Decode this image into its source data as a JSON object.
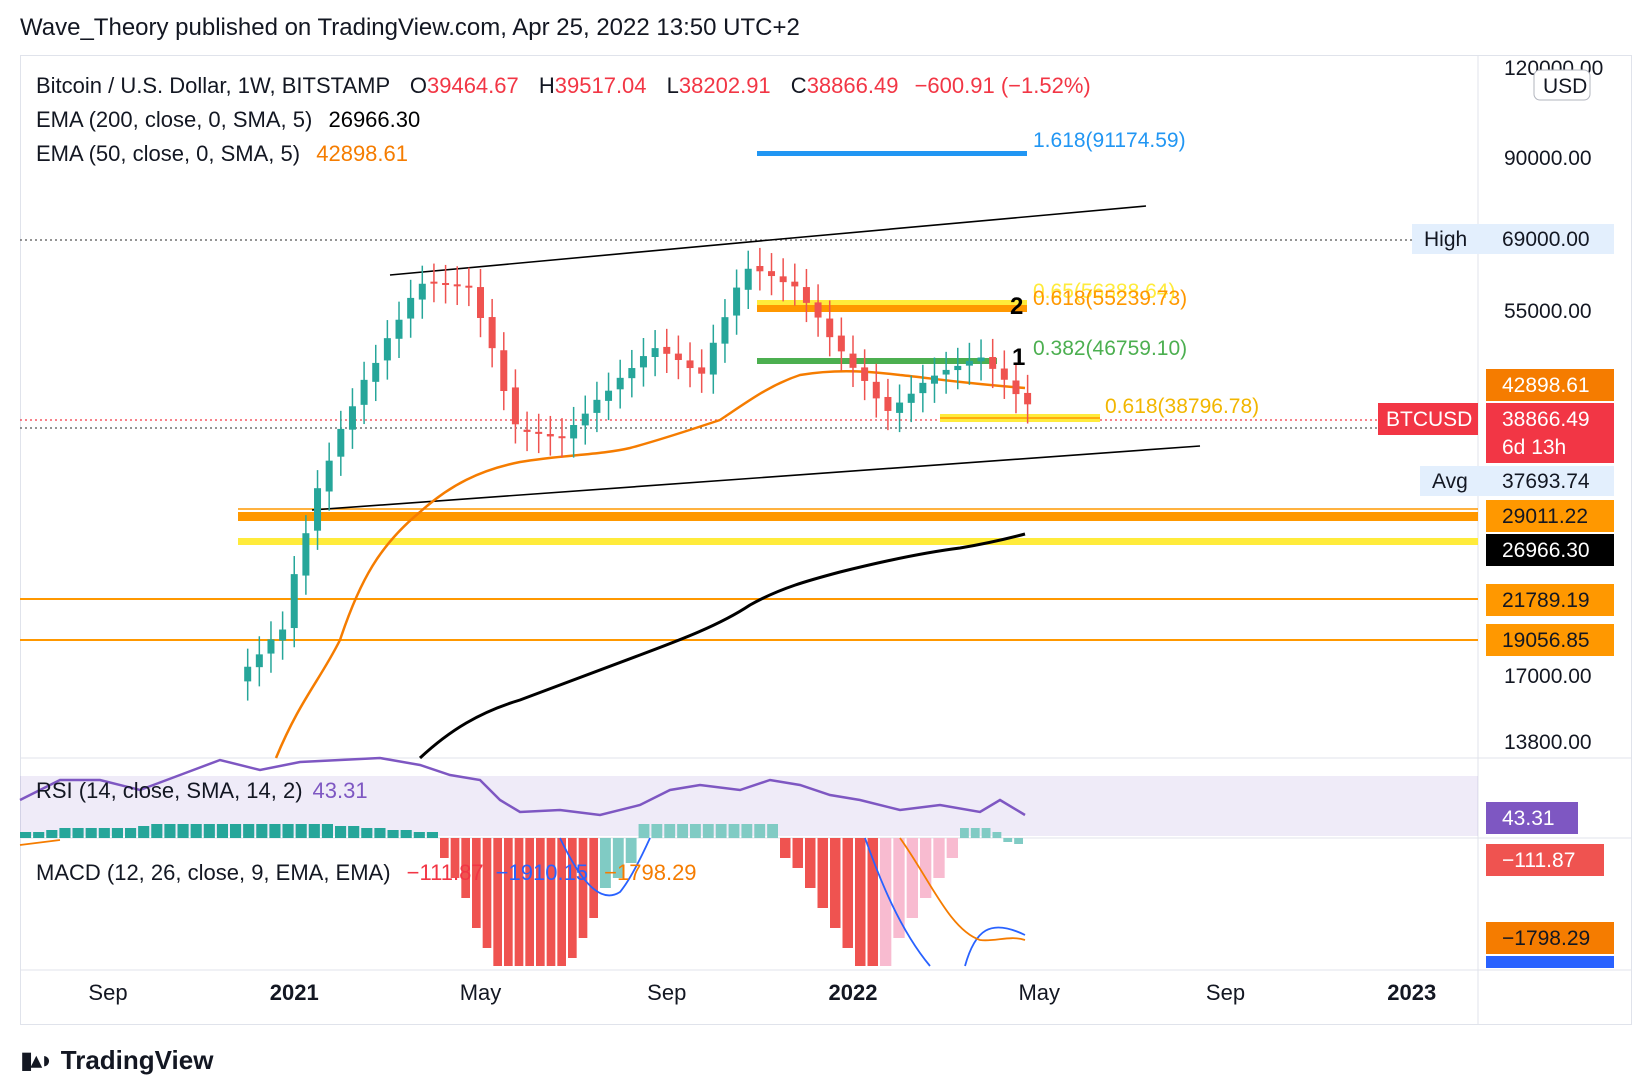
{
  "header": {
    "publisher_line": "Wave_Theory published on TradingView.com, Apr 25, 2022 13:50 UTC+2"
  },
  "legend": {
    "symbol": "Bitcoin / U.S. Dollar, 1W, BITSTAMP",
    "open_label": "O",
    "open": "39464.67",
    "high_label": "H",
    "high": "39517.04",
    "low_label": "L",
    "low": "38202.91",
    "close_label": "C",
    "close": "38866.49",
    "change": "−600.91 (−1.52%)",
    "ema200_label": "EMA (200, close, 0, SMA, 5)",
    "ema200_value": "26966.30",
    "ema50_label": "EMA (50, close, 0, SMA, 5)",
    "ema50_value": "42898.61"
  },
  "price_scale": {
    "currency": "USD",
    "ticks": [
      "120000.00",
      "90000.00",
      "55000.00",
      "17000.00",
      "13800.00"
    ]
  },
  "price_labels": [
    {
      "tag": "High",
      "value": "69000.00",
      "bg": "#e3effd",
      "color": "#131722"
    },
    {
      "tag": "",
      "value": "42898.61",
      "bg": "#f57c00",
      "color": "#ffffff"
    },
    {
      "tag": "BTCUSD",
      "value": "38866.49",
      "sub": "6d 13h",
      "bg": "#f23645",
      "color": "#ffffff"
    },
    {
      "tag": "Avg",
      "value": "37693.74",
      "bg": "#e3effd",
      "color": "#131722"
    },
    {
      "tag": "",
      "value": "29011.22",
      "bg": "#ff9800",
      "color": "#131722"
    },
    {
      "tag": "",
      "value": "26966.30",
      "bg": "#000000",
      "color": "#ffffff"
    },
    {
      "tag": "",
      "value": "21789.19",
      "bg": "#ff9800",
      "color": "#131722"
    },
    {
      "tag": "",
      "value": "19056.85",
      "bg": "#ff9800",
      "color": "#131722"
    }
  ],
  "annotations": {
    "fib_1618": "1.618(91174.59)",
    "fib_065": "0.65(56388.64)",
    "fib_0618_upper": "0.618(55239.73)",
    "fib_0382": "0.382(46759.10)",
    "fib_0618_lower": "0.618(38796.78)",
    "wave_1": "1",
    "wave_2": "2"
  },
  "rsi": {
    "label": "RSI (14, close, SMA, 14, 2)",
    "value": "43.31",
    "color": "#7e57c2"
  },
  "macd": {
    "label": "MACD (12, 26, close, 9, EMA, EMA)",
    "hist": "−111.87",
    "macd_line": "−1910.15",
    "signal": "−1798.29",
    "signal_scale": "−1798.29",
    "hist_scale": "−111.87"
  },
  "time_axis": [
    "Sep",
    "2021",
    "May",
    "Sep",
    "2022",
    "May",
    "Sep",
    "2023"
  ],
  "footer": {
    "brand": "TradingView",
    "logo_icon": "tradingview-logo-icon"
  },
  "colors": {
    "up": "#26a69a",
    "down": "#ef5350",
    "ema50": "#f57c00",
    "ema200": "#000000",
    "rsi": "#7e57c2"
  },
  "chart_data": {
    "type": "candlestick",
    "title": "Bitcoin / U.S. Dollar, 1W, BITSTAMP",
    "ylabel": "USD",
    "y_scale": "log",
    "ylim": [
      12500,
      120000
    ],
    "x_range": [
      "2020-08",
      "2023-02"
    ],
    "current_close": 38866.49,
    "all_time_high": 69000,
    "average": 37693.74,
    "fib_levels": [
      {
        "ratio": 1.618,
        "price": 91174.59
      },
      {
        "ratio": 0.65,
        "price": 56388.64
      },
      {
        "ratio": 0.618,
        "price": 55239.73
      },
      {
        "ratio": 0.382,
        "price": 46759.1
      },
      {
        "ratio": 0.618,
        "price": 38796.78
      }
    ],
    "horizontal_levels": [
      29011.22,
      21789.19,
      19056.85
    ],
    "ema50_last": 42898.61,
    "ema200_last": 26966.3,
    "closes_by_month": [
      {
        "period": "2020-12",
        "close": 19000
      },
      {
        "period": "2021-01",
        "close": 33000
      },
      {
        "period": "2021-02",
        "close": 45000
      },
      {
        "period": "2021-03",
        "close": 58000
      },
      {
        "period": "2021-04",
        "close": 57000
      },
      {
        "period": "2021-05",
        "close": 36000
      },
      {
        "period": "2021-06",
        "close": 35000
      },
      {
        "period": "2021-07",
        "close": 41000
      },
      {
        "period": "2021-08",
        "close": 47000
      },
      {
        "period": "2021-09",
        "close": 43000
      },
      {
        "period": "2021-10",
        "close": 61000
      },
      {
        "period": "2021-11",
        "close": 57000
      },
      {
        "period": "2021-12",
        "close": 46000
      },
      {
        "period": "2022-01",
        "close": 38000
      },
      {
        "period": "2022-02",
        "close": 43000
      },
      {
        "period": "2022-03",
        "close": 45500
      },
      {
        "period": "2022-04",
        "close": 38866.49
      }
    ],
    "rsi_last": 43.31,
    "macd": {
      "histogram": -111.87,
      "macd": -1910.15,
      "signal": -1798.29
    }
  }
}
